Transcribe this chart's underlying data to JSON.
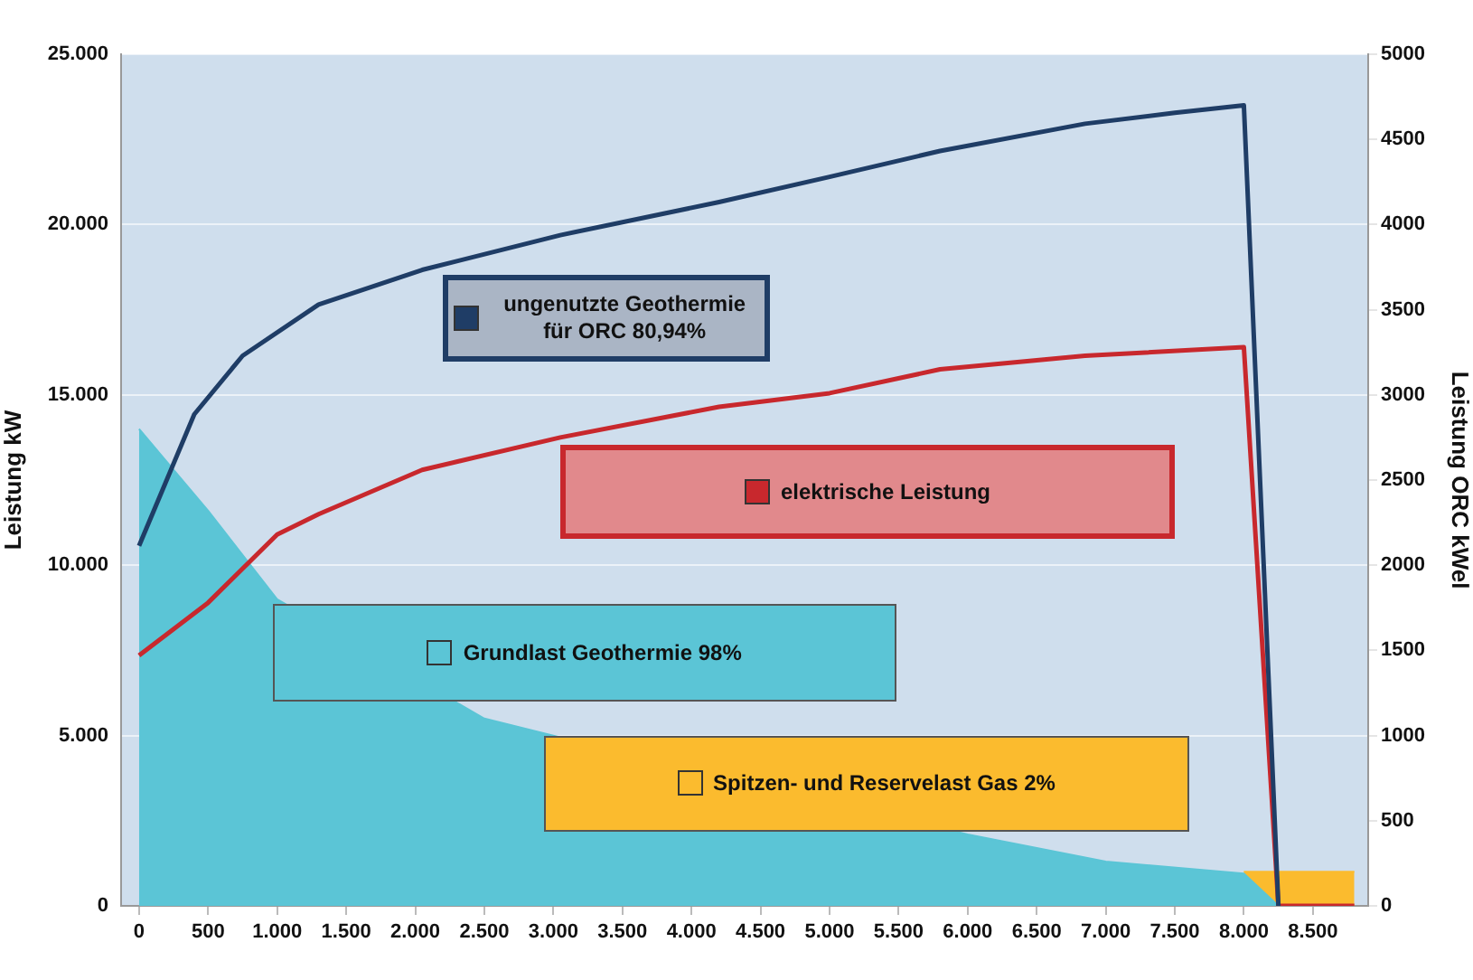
{
  "chart_data": {
    "type": "line",
    "ylabel": "Leistung kW",
    "y2label": "Leistung ORC kWel",
    "xlim": [
      -130,
      8900
    ],
    "xticks": [
      0,
      500,
      {
        "value": 1000,
        "label": "1.000"
      },
      {
        "value": 1500,
        "label": "1.500"
      },
      {
        "value": 2000,
        "label": "2.000"
      },
      {
        "value": 2500,
        "label": "2.500"
      },
      {
        "value": 3000,
        "label": "3.000"
      },
      {
        "value": 3500,
        "label": "3.500"
      },
      {
        "value": 4000,
        "label": "4.000"
      },
      {
        "value": 4500,
        "label": "4.500"
      },
      {
        "value": 5000,
        "label": "5.000"
      },
      {
        "value": 5500,
        "label": "5.500"
      },
      {
        "value": 6000,
        "label": "6.000"
      },
      {
        "value": 6500,
        "label": "6.500"
      },
      {
        "value": 7000,
        "label": "7.000"
      },
      {
        "value": 7500,
        "label": "7.500"
      },
      {
        "value": 8000,
        "label": "8.000"
      },
      {
        "value": 8500,
        "label": "8.500"
      }
    ],
    "ylim": [
      0,
      25000
    ],
    "yticks": [
      0,
      {
        "value": 5000,
        "label": "5.000"
      },
      {
        "value": 10000,
        "label": "10.000"
      },
      {
        "value": 15000,
        "label": "15.000"
      },
      {
        "value": 20000,
        "label": "20.000"
      },
      {
        "value": 25000,
        "label": "25.000"
      }
    ],
    "y2lim": [
      0,
      5000
    ],
    "y2ticks": [
      0,
      500,
      1000,
      1500,
      2000,
      2500,
      3000,
      3500,
      4000,
      4500,
      5000
    ],
    "grid": "y",
    "marker": "none",
    "legend": "center",
    "series": [
      {
        "name": "ungenutzte Geothermie für ORC 80,94%",
        "type": "line",
        "color": "#1f3d66",
        "x": [
          0,
          400,
          750,
          1300,
          2050,
          3050,
          4200,
          5000,
          5800,
          6850,
          7500,
          8000,
          8250
        ],
        "values": [
          10570,
          14430,
          16150,
          17650,
          18670,
          19690,
          20660,
          21400,
          22160,
          22960,
          23280,
          23500,
          0
        ]
      },
      {
        "name": "elektrische Leistung",
        "type": "line",
        "axis": "y2",
        "color": "#c8282d",
        "x": [
          0,
          500,
          1000,
          1300,
          2050,
          3050,
          4200,
          5000,
          5800,
          6850,
          8000,
          8250,
          8800
        ],
        "values": [
          1470,
          1780,
          2180,
          2300,
          2560,
          2750,
          2930,
          3010,
          3150,
          3230,
          3280,
          0,
          0
        ]
      },
      {
        "name": "Grundlast Geothermie 98%",
        "type": "area",
        "color": "#5bc5d6",
        "x": [
          0,
          500,
          1000,
          2500,
          3000,
          6000,
          7000,
          8000,
          8250
        ],
        "values": [
          14000,
          11600,
          9000,
          5500,
          5000,
          2100,
          1300,
          950,
          0
        ]
      },
      {
        "name": "Spitzen- und Reservelast Gas  2%",
        "type": "area",
        "color": "#fbbb2e",
        "x": [
          8000,
          8800
        ],
        "values": [
          1000,
          1000
        ]
      }
    ]
  }
}
